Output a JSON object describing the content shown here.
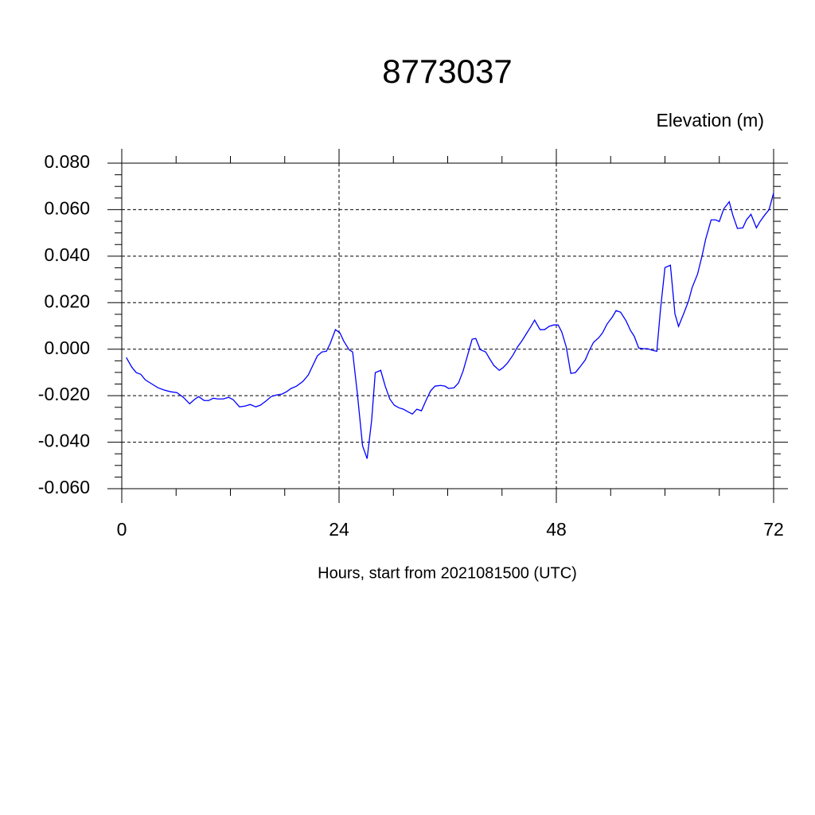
{
  "chart_data": {
    "type": "line",
    "title": "8773037",
    "y_label": "Elevation (m)",
    "x_label": "Hours, start from 2021081500 (UTC)",
    "color": "#0000ff",
    "grid": true,
    "xlim": [
      0,
      72
    ],
    "xticks": [
      0,
      24,
      48,
      72
    ],
    "ylim": [
      -0.06,
      0.08
    ],
    "yticks": [
      {
        "value": -0.06,
        "label": "-0.060"
      },
      {
        "value": -0.04,
        "label": "-0.040"
      },
      {
        "value": -0.02,
        "label": "-0.020"
      },
      {
        "value": 0,
        "label": "0.000"
      },
      {
        "value": 0.02,
        "label": "0.020"
      },
      {
        "value": 0.04,
        "label": "0.040"
      },
      {
        "value": 0.06,
        "label": "0.060"
      },
      {
        "value": 0.08,
        "label": "0.080"
      }
    ],
    "x": [
      0.5,
      1.1,
      1.6,
      2.1,
      2.6,
      3.3,
      4.0,
      4.7,
      5.4,
      6.1,
      6.8,
      7.5,
      8.0,
      8.5,
      9.1,
      9.6,
      10.1,
      10.6,
      11.2,
      11.8,
      12.3,
      13.0,
      13.6,
      14.2,
      14.8,
      15.3,
      15.9,
      16.5,
      17.1,
      17.7,
      18.2,
      18.7,
      19.3,
      20.0,
      20.6,
      21.1,
      21.6,
      22.1,
      22.6,
      23.0,
      23.6,
      24.1,
      24.5,
      25.1,
      25.5,
      26.0,
      26.6,
      27.1,
      27.6,
      28.0,
      28.6,
      29.1,
      29.6,
      30.1,
      30.6,
      31.1,
      31.6,
      32.1,
      32.6,
      33.1,
      33.6,
      34.1,
      34.6,
      35.2,
      35.7,
      36.1,
      36.7,
      37.2,
      37.7,
      38.2,
      38.7,
      39.1,
      39.6,
      40.2,
      40.6,
      41.1,
      41.7,
      42.1,
      42.6,
      43.2,
      43.7,
      44.2,
      44.7,
      45.2,
      45.6,
      46.2,
      46.7,
      47.2,
      47.7,
      48.2,
      48.6,
      49.1,
      49.6,
      50.1,
      50.6,
      51.2,
      51.6,
      52.1,
      52.7,
      53.1,
      53.6,
      54.2,
      54.6,
      55.1,
      55.7,
      56.2,
      56.6,
      57.1,
      57.6,
      58.1,
      58.6,
      59.1,
      59.5,
      60.0,
      60.6,
      61.1,
      61.5,
      62.1,
      62.6,
      63.0,
      63.6,
      64.1,
      64.5,
      65.1,
      65.6,
      66.0,
      66.5,
      67.1,
      67.5,
      68.0,
      68.6,
      69.0,
      69.5,
      70.1,
      70.5,
      71.0,
      71.5,
      72.0
    ],
    "values": [
      -0.0036,
      -0.0077,
      -0.0101,
      -0.0108,
      -0.0132,
      -0.0149,
      -0.0166,
      -0.0176,
      -0.0183,
      -0.0187,
      -0.0207,
      -0.0235,
      -0.0217,
      -0.0204,
      -0.0221,
      -0.0221,
      -0.0211,
      -0.0214,
      -0.0214,
      -0.0207,
      -0.0217,
      -0.0248,
      -0.0245,
      -0.0238,
      -0.0248,
      -0.0241,
      -0.0224,
      -0.0204,
      -0.0197,
      -0.0193,
      -0.0183,
      -0.0169,
      -0.0159,
      -0.0139,
      -0.0111,
      -0.007,
      -0.0029,
      -0.0012,
      -0.0009,
      0.0022,
      0.0084,
      0.007,
      0.0036,
      -0.0002,
      -0.0012,
      -0.0183,
      -0.0416,
      -0.0471,
      -0.0306,
      -0.0101,
      -0.0091,
      -0.0159,
      -0.0214,
      -0.0241,
      -0.0252,
      -0.0258,
      -0.0269,
      -0.0279,
      -0.0258,
      -0.0265,
      -0.0221,
      -0.018,
      -0.0159,
      -0.0156,
      -0.0159,
      -0.0169,
      -0.0166,
      -0.0145,
      -0.0094,
      -0.0026,
      0.0043,
      0.0046,
      -0.0002,
      -0.0012,
      -0.0039,
      -0.007,
      -0.0091,
      -0.008,
      -0.006,
      -0.0026,
      0.0009,
      0.0036,
      0.0067,
      0.0098,
      0.0125,
      0.0084,
      0.0084,
      0.0098,
      0.0104,
      0.0104,
      0.0074,
      0.0009,
      -0.0104,
      -0.0101,
      -0.0077,
      -0.0046,
      -0.0009,
      0.0029,
      0.005,
      0.007,
      0.0108,
      0.0139,
      0.0166,
      0.0159,
      0.0122,
      0.008,
      0.0056,
      0.0005,
      0.0002,
      0.0002,
      -0.0005,
      -0.0009,
      0.0169,
      0.0351,
      0.0361,
      0.0152,
      0.0098,
      0.0156,
      0.0207,
      0.0265,
      0.0323,
      0.0402,
      0.0474,
      0.0556,
      0.0556,
      0.0549,
      0.0604,
      0.0634,
      0.0576,
      0.0519,
      0.0522,
      0.0556,
      0.058,
      0.0522,
      0.0549,
      0.0576,
      0.06,
      0.0672
    ]
  }
}
